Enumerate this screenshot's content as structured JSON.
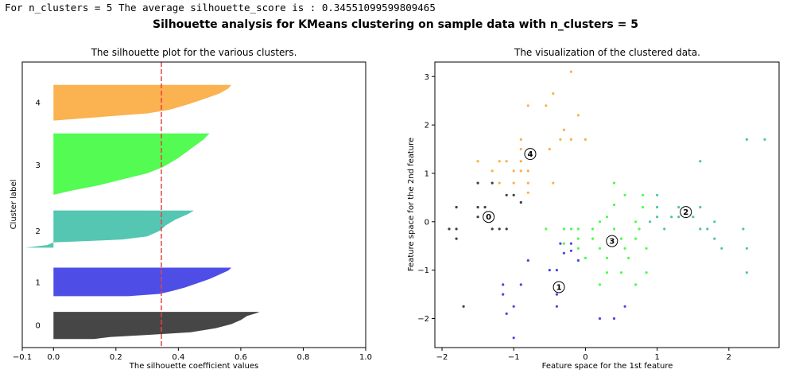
{
  "console_text": "For n_clusters = 5 The average silhouette_score is : 0.34551099599809465",
  "suptitle": "Silhouette analysis for KMeans clustering on sample data with n_clusters = 5",
  "colors": {
    "0": "#404040",
    "1": "#4848e6",
    "2": "#4ec4ae",
    "3": "#4dfb4d",
    "4": "#fbb04b",
    "avg_line": "#e8413f"
  },
  "chart_data": [
    {
      "type": "area",
      "title": "The silhouette plot for the various clusters.",
      "xlabel": "The silhouette coefficient values",
      "ylabel": "Cluster label",
      "xlim": [
        -0.1,
        1.0
      ],
      "ylim": [
        0,
        100
      ],
      "xticks": [
        -0.1,
        0.0,
        0.2,
        0.4,
        0.6,
        0.8,
        1.0
      ],
      "xtick_labels": [
        "−0.1",
        "0.0",
        "0.2",
        "0.4",
        "0.6",
        "0.8",
        "1.0"
      ],
      "avg_score": 0.34551099599809465,
      "clusters": [
        {
          "label": "0",
          "y_lower": 3,
          "y_upper": 12.5,
          "label_y": 8,
          "profile": [
            [
              0,
              0.66
            ],
            [
              0.05,
              0.65
            ],
            [
              0.15,
              0.62
            ],
            [
              0.3,
              0.6
            ],
            [
              0.45,
              0.57
            ],
            [
              0.6,
              0.52
            ],
            [
              0.75,
              0.44
            ],
            [
              0.85,
              0.3
            ],
            [
              0.93,
              0.18
            ],
            [
              1,
              0.13
            ]
          ]
        },
        {
          "label": "1",
          "y_lower": 18,
          "y_upper": 28,
          "label_y": 23,
          "profile": [
            [
              0,
              0.57
            ],
            [
              0.1,
              0.56
            ],
            [
              0.25,
              0.53
            ],
            [
              0.4,
              0.5
            ],
            [
              0.55,
              0.46
            ],
            [
              0.7,
              0.42
            ],
            [
              0.82,
              0.38
            ],
            [
              0.92,
              0.34
            ],
            [
              1,
              0.24
            ]
          ]
        },
        {
          "label": "2",
          "y_lower": 35,
          "y_upper": 48,
          "label_y": 41,
          "profile": [
            [
              0,
              0.45
            ],
            [
              0.1,
              0.43
            ],
            [
              0.25,
              0.39
            ],
            [
              0.4,
              0.36
            ],
            [
              0.55,
              0.34
            ],
            [
              0.7,
              0.3
            ],
            [
              0.78,
              0.22
            ],
            [
              0.82,
              0.12
            ],
            [
              0.86,
              0.0
            ],
            [
              0.93,
              -0.02
            ],
            [
              1,
              -0.09
            ]
          ]
        },
        {
          "label": "3",
          "y_lower": 53.5,
          "y_upper": 75,
          "label_y": 64,
          "profile": [
            [
              0,
              0.5
            ],
            [
              0.1,
              0.48
            ],
            [
              0.25,
              0.44
            ],
            [
              0.4,
              0.4
            ],
            [
              0.55,
              0.35
            ],
            [
              0.65,
              0.3
            ],
            [
              0.75,
              0.22
            ],
            [
              0.85,
              0.14
            ],
            [
              0.93,
              0.06
            ],
            [
              1,
              0.0
            ]
          ]
        },
        {
          "label": "4",
          "y_lower": 79.5,
          "y_upper": 92,
          "label_y": 86,
          "profile": [
            [
              0,
              0.57
            ],
            [
              0.1,
              0.56
            ],
            [
              0.25,
              0.53
            ],
            [
              0.4,
              0.48
            ],
            [
              0.55,
              0.43
            ],
            [
              0.7,
              0.37
            ],
            [
              0.8,
              0.3
            ],
            [
              0.9,
              0.15
            ],
            [
              1,
              0.0
            ]
          ]
        }
      ]
    },
    {
      "type": "scatter",
      "title": "The visualization of the clustered data.",
      "xlabel": "Feature space for the 1st feature",
      "ylabel": "Feature space for the 2nd feature",
      "xlim": [
        -2.1,
        2.7
      ],
      "ylim": [
        -2.6,
        3.3
      ],
      "xticks": [
        -2,
        -1,
        0,
        1,
        2
      ],
      "xtick_labels": [
        "−2",
        "−1",
        "0",
        "1",
        "2"
      ],
      "yticks": [
        -2,
        -1,
        0,
        1,
        2,
        3
      ],
      "ytick_labels": [
        "−2",
        "−1",
        "0",
        "1",
        "2",
        "3"
      ],
      "centers": [
        {
          "label": "0",
          "x": -1.35,
          "y": 0.1
        },
        {
          "label": "1",
          "x": -0.37,
          "y": -1.35
        },
        {
          "label": "2",
          "x": 1.4,
          "y": 0.2
        },
        {
          "label": "3",
          "x": 0.37,
          "y": -0.4
        },
        {
          "label": "4",
          "x": -0.77,
          "y": 1.4
        }
      ],
      "points": {
        "0": [
          [
            -1.9,
            -0.15
          ],
          [
            -1.8,
            -0.35
          ],
          [
            -1.8,
            -0.15
          ],
          [
            -1.8,
            0.3
          ],
          [
            -1.7,
            -1.75
          ],
          [
            -1.5,
            0.1
          ],
          [
            -1.5,
            0.3
          ],
          [
            -1.5,
            0.8
          ],
          [
            -1.4,
            0.1
          ],
          [
            -1.4,
            0.3
          ],
          [
            -1.3,
            -0.15
          ],
          [
            -1.3,
            0.8
          ],
          [
            -1.2,
            -0.15
          ],
          [
            -1.1,
            0.55
          ],
          [
            -1.1,
            -0.15
          ],
          [
            -1.0,
            0.55
          ],
          [
            -0.9,
            0.4
          ]
        ],
        "1": [
          [
            -0.35,
            -0.45
          ],
          [
            -0.3,
            -0.65
          ],
          [
            -0.2,
            -0.45
          ],
          [
            -0.2,
            -0.6
          ],
          [
            -0.4,
            -1.0
          ],
          [
            -0.4,
            -1.5
          ],
          [
            -0.4,
            -1.75
          ],
          [
            -0.5,
            -1.0
          ],
          [
            -0.8,
            -0.8
          ],
          [
            -0.9,
            -1.3
          ],
          [
            -1.0,
            -1.75
          ],
          [
            -1.0,
            -2.4
          ],
          [
            -1.15,
            -1.3
          ],
          [
            -1.15,
            -1.5
          ],
          [
            -1.1,
            -1.9
          ],
          [
            0.2,
            -2.0
          ],
          [
            0.4,
            -2.0
          ],
          [
            0.55,
            -1.75
          ],
          [
            -0.1,
            -0.8
          ]
        ],
        "2": [
          [
            0.9,
            0.0
          ],
          [
            1.0,
            0.1
          ],
          [
            1.0,
            0.3
          ],
          [
            1.0,
            0.55
          ],
          [
            1.1,
            -0.15
          ],
          [
            1.2,
            0.1
          ],
          [
            1.3,
            0.3
          ],
          [
            1.3,
            0.1
          ],
          [
            1.5,
            0.1
          ],
          [
            1.6,
            0.3
          ],
          [
            1.6,
            -0.15
          ],
          [
            1.6,
            1.25
          ],
          [
            1.7,
            -0.15
          ],
          [
            1.8,
            0.0
          ],
          [
            1.8,
            -0.35
          ],
          [
            1.9,
            -0.55
          ],
          [
            2.2,
            -0.15
          ],
          [
            2.25,
            -0.55
          ],
          [
            2.25,
            -1.05
          ],
          [
            2.25,
            1.7
          ],
          [
            2.5,
            1.7
          ]
        ],
        "3": [
          [
            -0.55,
            -0.15
          ],
          [
            -0.3,
            -0.15
          ],
          [
            -0.3,
            -0.45
          ],
          [
            -0.2,
            -0.15
          ],
          [
            -0.1,
            -0.15
          ],
          [
            -0.1,
            -0.35
          ],
          [
            -0.1,
            -0.55
          ],
          [
            0.0,
            -0.75
          ],
          [
            0.1,
            -0.35
          ],
          [
            0.1,
            -0.15
          ],
          [
            0.2,
            0.0
          ],
          [
            0.2,
            -0.55
          ],
          [
            0.2,
            -1.3
          ],
          [
            0.3,
            0.1
          ],
          [
            0.3,
            -0.75
          ],
          [
            0.3,
            -1.05
          ],
          [
            0.4,
            -0.15
          ],
          [
            0.4,
            0.35
          ],
          [
            0.4,
            0.8
          ],
          [
            0.5,
            -0.35
          ],
          [
            0.55,
            0.55
          ],
          [
            0.55,
            -0.55
          ],
          [
            0.6,
            -0.75
          ],
          [
            0.7,
            0.0
          ],
          [
            0.7,
            -0.35
          ],
          [
            0.7,
            -1.3
          ],
          [
            0.75,
            -0.15
          ],
          [
            0.8,
            0.3
          ],
          [
            0.8,
            0.55
          ],
          [
            0.85,
            -0.55
          ],
          [
            0.85,
            -1.05
          ],
          [
            0.5,
            -1.05
          ]
        ],
        "4": [
          [
            -1.5,
            1.25
          ],
          [
            -1.3,
            1.05
          ],
          [
            -1.2,
            1.25
          ],
          [
            -1.2,
            0.8
          ],
          [
            -1.0,
            1.05
          ],
          [
            -1.0,
            0.8
          ],
          [
            -0.9,
            1.05
          ],
          [
            -0.9,
            1.25
          ],
          [
            -0.9,
            1.5
          ],
          [
            -0.9,
            1.7
          ],
          [
            -0.8,
            2.4
          ],
          [
            -0.8,
            1.05
          ],
          [
            -0.8,
            0.6
          ],
          [
            -0.55,
            2.4
          ],
          [
            -0.5,
            1.5
          ],
          [
            -0.45,
            0.8
          ],
          [
            -0.45,
            2.65
          ],
          [
            -0.35,
            1.7
          ],
          [
            -0.3,
            1.9
          ],
          [
            -0.2,
            3.1
          ],
          [
            -0.2,
            1.7
          ],
          [
            -0.1,
            2.2
          ],
          [
            0.0,
            1.7
          ],
          [
            -1.1,
            1.25
          ],
          [
            -0.8,
            0.8
          ]
        ]
      }
    }
  ]
}
